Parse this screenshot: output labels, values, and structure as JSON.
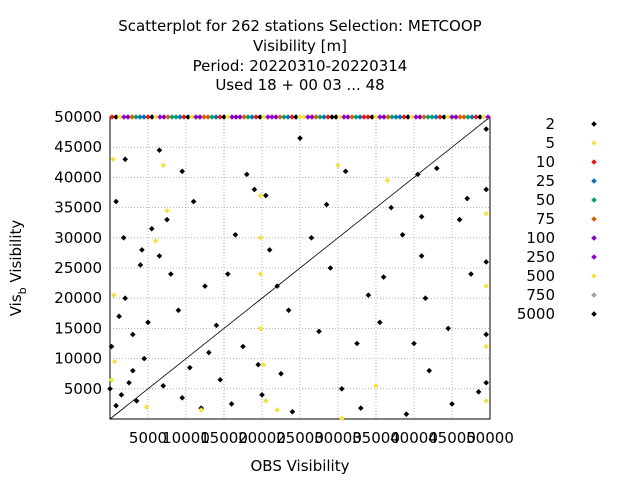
{
  "chart_data": {
    "type": "scatter",
    "title_lines": [
      "Scatterplot for  262 stations Selection: METCOOP",
      "Visibility [m]",
      "Period: 20220310-20220314",
      "Used  18 + 00 03 ... 48"
    ],
    "xlabel": "OBS Visibility",
    "ylabel_main": "Vis",
    "ylabel_sub": "b",
    "ylabel_tail": " Visibility",
    "xlim": [
      0,
      50000
    ],
    "ylim": [
      0,
      50000
    ],
    "x_ticks": [
      5000,
      10000,
      15000,
      20000,
      25000,
      30000,
      35000,
      40000,
      45000,
      50000
    ],
    "y_ticks": [
      5000,
      10000,
      15000,
      20000,
      25000,
      30000,
      35000,
      40000,
      45000,
      50000
    ],
    "grid": true,
    "diagonal": true,
    "legend_position": "right",
    "legend": [
      {
        "label": "2",
        "color": "#000000"
      },
      {
        "label": "5",
        "color": "#f0e442"
      },
      {
        "label": "10",
        "color": "#e31a1c"
      },
      {
        "label": "25",
        "color": "#0072b2"
      },
      {
        "label": "50",
        "color": "#009e73"
      },
      {
        "label": "75",
        "color": "#d55e00"
      },
      {
        "label": "100",
        "color": "#8000c0"
      },
      {
        "label": "250",
        "color": "#9400d3"
      },
      {
        "label": "500",
        "color": "#f0e442"
      },
      {
        "label": "750",
        "color": "#a0a0a0"
      },
      {
        "label": "5000",
        "color": "#000000"
      }
    ],
    "series": [
      {
        "count_class": "2",
        "points": [
          [
            0,
            5000
          ],
          [
            1500,
            4000
          ],
          [
            2500,
            6000
          ],
          [
            800,
            2200
          ],
          [
            3500,
            3000
          ],
          [
            200,
            12000
          ],
          [
            1200,
            17000
          ],
          [
            2000,
            20000
          ],
          [
            3000,
            14000
          ],
          [
            4500,
            10000
          ],
          [
            1800,
            30000
          ],
          [
            800,
            36000
          ],
          [
            4200,
            28000
          ],
          [
            5500,
            31500
          ],
          [
            6500,
            27000
          ],
          [
            7500,
            33000
          ],
          [
            8000,
            24000
          ],
          [
            9000,
            18000
          ],
          [
            9500,
            41000
          ],
          [
            11000,
            36000
          ],
          [
            12500,
            22000
          ],
          [
            14000,
            15500
          ],
          [
            15500,
            24000
          ],
          [
            16500,
            30500
          ],
          [
            18000,
            40500
          ],
          [
            19000,
            38000
          ],
          [
            19500,
            9000
          ],
          [
            20500,
            37000
          ],
          [
            21000,
            28000
          ],
          [
            22000,
            22000
          ],
          [
            23500,
            18000
          ],
          [
            25000,
            46500
          ],
          [
            26500,
            30000
          ],
          [
            27500,
            14500
          ],
          [
            29000,
            25000
          ],
          [
            31000,
            41000
          ],
          [
            32500,
            12500
          ],
          [
            34000,
            20500
          ],
          [
            35500,
            16000
          ],
          [
            37000,
            35000
          ],
          [
            38500,
            30500
          ],
          [
            40500,
            40500
          ],
          [
            41500,
            20000
          ],
          [
            43000,
            41500
          ],
          [
            44500,
            15000
          ],
          [
            46000,
            33000
          ],
          [
            47500,
            24000
          ],
          [
            48500,
            4500
          ],
          [
            12000,
            1800
          ],
          [
            16000,
            2500
          ],
          [
            24000,
            1200
          ],
          [
            33000,
            1800
          ],
          [
            39000,
            800
          ],
          [
            45000,
            2500
          ],
          [
            6500,
            44500
          ],
          [
            14500,
            6500
          ],
          [
            17500,
            12000
          ],
          [
            10500,
            8500
          ],
          [
            28500,
            35500
          ],
          [
            36000,
            23500
          ],
          [
            42000,
            8000
          ],
          [
            3000,
            8000
          ],
          [
            7000,
            5500
          ],
          [
            9500,
            3500
          ],
          [
            13000,
            11000
          ],
          [
            5000,
            16000
          ],
          [
            22500,
            7500
          ],
          [
            30500,
            5000
          ],
          [
            40000,
            12500
          ],
          [
            47000,
            36500
          ],
          [
            2000,
            43000
          ],
          [
            4000,
            25500
          ],
          [
            49500,
            48000
          ],
          [
            49500,
            38000
          ],
          [
            49500,
            26000
          ],
          [
            49500,
            14000
          ],
          [
            49500,
            6000
          ],
          [
            41000,
            33500
          ],
          [
            41000,
            27000
          ],
          [
            20000,
            4000
          ]
        ]
      },
      {
        "count_class": "5",
        "points": [
          [
            400,
            43000
          ],
          [
            500,
            20500
          ],
          [
            600,
            9500
          ],
          [
            200,
            6500
          ],
          [
            7000,
            42000
          ],
          [
            7500,
            34500
          ],
          [
            6000,
            29500
          ],
          [
            19800,
            37000
          ],
          [
            19800,
            30000
          ],
          [
            19800,
            24000
          ],
          [
            19800,
            15000
          ],
          [
            20200,
            9000
          ],
          [
            20500,
            3000
          ],
          [
            30000,
            42000
          ],
          [
            36500,
            39500
          ],
          [
            49500,
            34000
          ],
          [
            49500,
            22000
          ],
          [
            49500,
            12000
          ],
          [
            49500,
            3000
          ],
          [
            22000,
            1500
          ],
          [
            35000,
            5500
          ],
          [
            12000,
            1500
          ],
          [
            30500,
            100
          ],
          [
            4800,
            2000
          ]
        ]
      }
    ]
  }
}
